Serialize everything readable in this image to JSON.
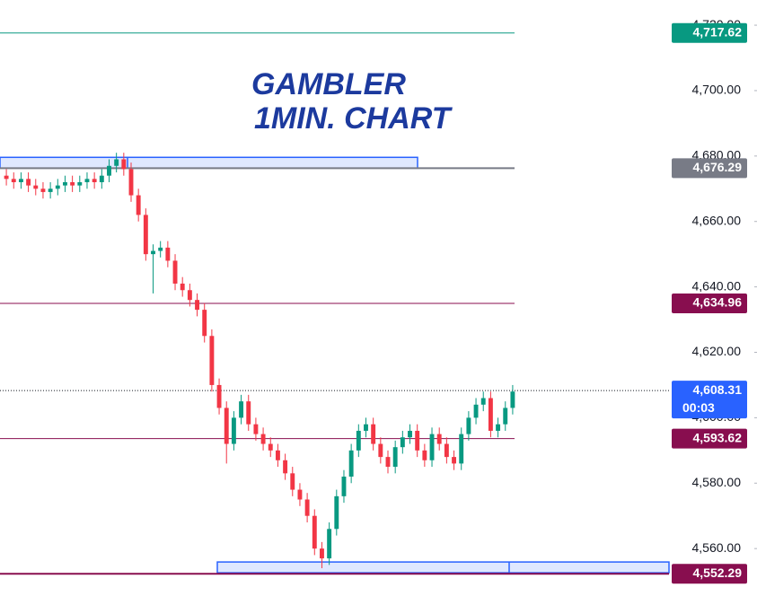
{
  "chart_data": {
    "type": "candlestick",
    "title": "GAMBLER",
    "subtitle": "1MIN. CHART",
    "up_color": "#089981",
    "down_color": "#f23645",
    "open": [
      4674,
      4673,
      4672,
      4673,
      4671,
      4670,
      4669,
      4670,
      4671,
      4672,
      4671,
      4672,
      4673,
      4672,
      4674,
      4677,
      4679,
      4676,
      4668,
      4662,
      4650,
      4651,
      4652,
      4648,
      4641,
      4639,
      4636,
      4633,
      4625,
      4610,
      4603,
      4592,
      4600,
      4605,
      4598,
      4595,
      4592,
      4590,
      4587,
      4583,
      4578,
      4575,
      4570,
      4560,
      4557,
      4566,
      4576,
      4582,
      4590,
      4596,
      4598,
      4592,
      4588,
      4585,
      4591,
      4594,
      4596,
      4590,
      4587,
      4595,
      4592,
      4588,
      4586,
      4595,
      4600,
      4604,
      4606,
      4596,
      4598,
      4603
    ],
    "high": [
      4676,
      4675,
      4675,
      4675,
      4673,
      4672,
      4672,
      4673,
      4674,
      4674,
      4674,
      4675,
      4675,
      4676,
      4679,
      4681,
      4681,
      4678,
      4670,
      4664,
      4653,
      4654,
      4654,
      4650,
      4643,
      4641,
      4638,
      4635,
      4627,
      4612,
      4605,
      4602,
      4607,
      4607,
      4600,
      4597,
      4594,
      4592,
      4589,
      4585,
      4580,
      4577,
      4572,
      4562,
      4568,
      4578,
      4584,
      4592,
      4598,
      4600,
      4600,
      4594,
      4590,
      4593,
      4596,
      4598,
      4598,
      4592,
      4597,
      4597,
      4594,
      4590,
      4597,
      4602,
      4606,
      4608,
      4608,
      4600,
      4605,
      4610
    ],
    "low": [
      4671,
      4670,
      4670,
      4669,
      4668,
      4667,
      4667,
      4668,
      4669,
      4669,
      4669,
      4670,
      4670,
      4670,
      4672,
      4675,
      4674,
      4666,
      4660,
      4648,
      4638,
      4649,
      4646,
      4639,
      4637,
      4634,
      4631,
      4623,
      4608,
      4601,
      4586,
      4590,
      4598,
      4596,
      4593,
      4590,
      4588,
      4585,
      4581,
      4576,
      4573,
      4568,
      4558,
      4554,
      4555,
      4564,
      4574,
      4580,
      4588,
      4594,
      4590,
      4586,
      4583,
      4583,
      4589,
      4592,
      4588,
      4585,
      4585,
      4590,
      4586,
      4584,
      4584,
      4593,
      4598,
      4602,
      4594,
      4594,
      4596,
      4601
    ],
    "close": [
      4673,
      4672,
      4673,
      4671,
      4670,
      4669,
      4670,
      4671,
      4672,
      4671,
      4672,
      4673,
      4672,
      4674,
      4677,
      4679,
      4676,
      4668,
      4662,
      4650,
      4651,
      4652,
      4648,
      4641,
      4639,
      4636,
      4633,
      4625,
      4610,
      4603,
      4592,
      4600,
      4605,
      4598,
      4595,
      4592,
      4590,
      4587,
      4583,
      4578,
      4575,
      4570,
      4560,
      4557,
      4566,
      4576,
      4582,
      4590,
      4596,
      4598,
      4592,
      4588,
      4585,
      4591,
      4594,
      4596,
      4590,
      4587,
      4595,
      4592,
      4588,
      4586,
      4595,
      4600,
      4604,
      4606,
      4596,
      4598,
      4603,
      4608
    ],
    "ylim": [
      4545.5,
      4727.7
    ],
    "yticks": [
      {
        "value": 4560,
        "label": "4,560.00"
      },
      {
        "value": 4580,
        "label": "4,580.00"
      },
      {
        "value": 4600,
        "label": "4,600.00"
      },
      {
        "value": 4620,
        "label": "4,620.00"
      },
      {
        "value": 4640,
        "label": "4,640.00"
      },
      {
        "value": 4660,
        "label": "4,660.00"
      },
      {
        "value": 4680,
        "label": "4,680.00"
      },
      {
        "value": 4700,
        "label": "4,700.00"
      },
      {
        "value": 4720,
        "label": "4,720.00"
      }
    ],
    "zones": [
      {
        "from": 4676.3,
        "to": 4679.6,
        "color": "#2962ff"
      },
      {
        "from": 4552.6,
        "to": 4555.9,
        "color": "#2962ff"
      }
    ],
    "levels": [
      {
        "value": 4717.62,
        "label": "4,717.62",
        "color": "#089981"
      },
      {
        "value": 4676.29,
        "label": "4,676.29",
        "color": "#787b86"
      },
      {
        "value": 4634.96,
        "label": "4,634.96",
        "color": "#880e4f"
      },
      {
        "value": 4608.31,
        "label": "4,608.31",
        "color": "#2962ff",
        "countdown": "00:03"
      },
      {
        "value": 4593.62,
        "label": "4,593.62",
        "color": "#880e4f"
      },
      {
        "value": 4552.29,
        "label": "4,552.29",
        "color": "#880e4f"
      }
    ]
  }
}
